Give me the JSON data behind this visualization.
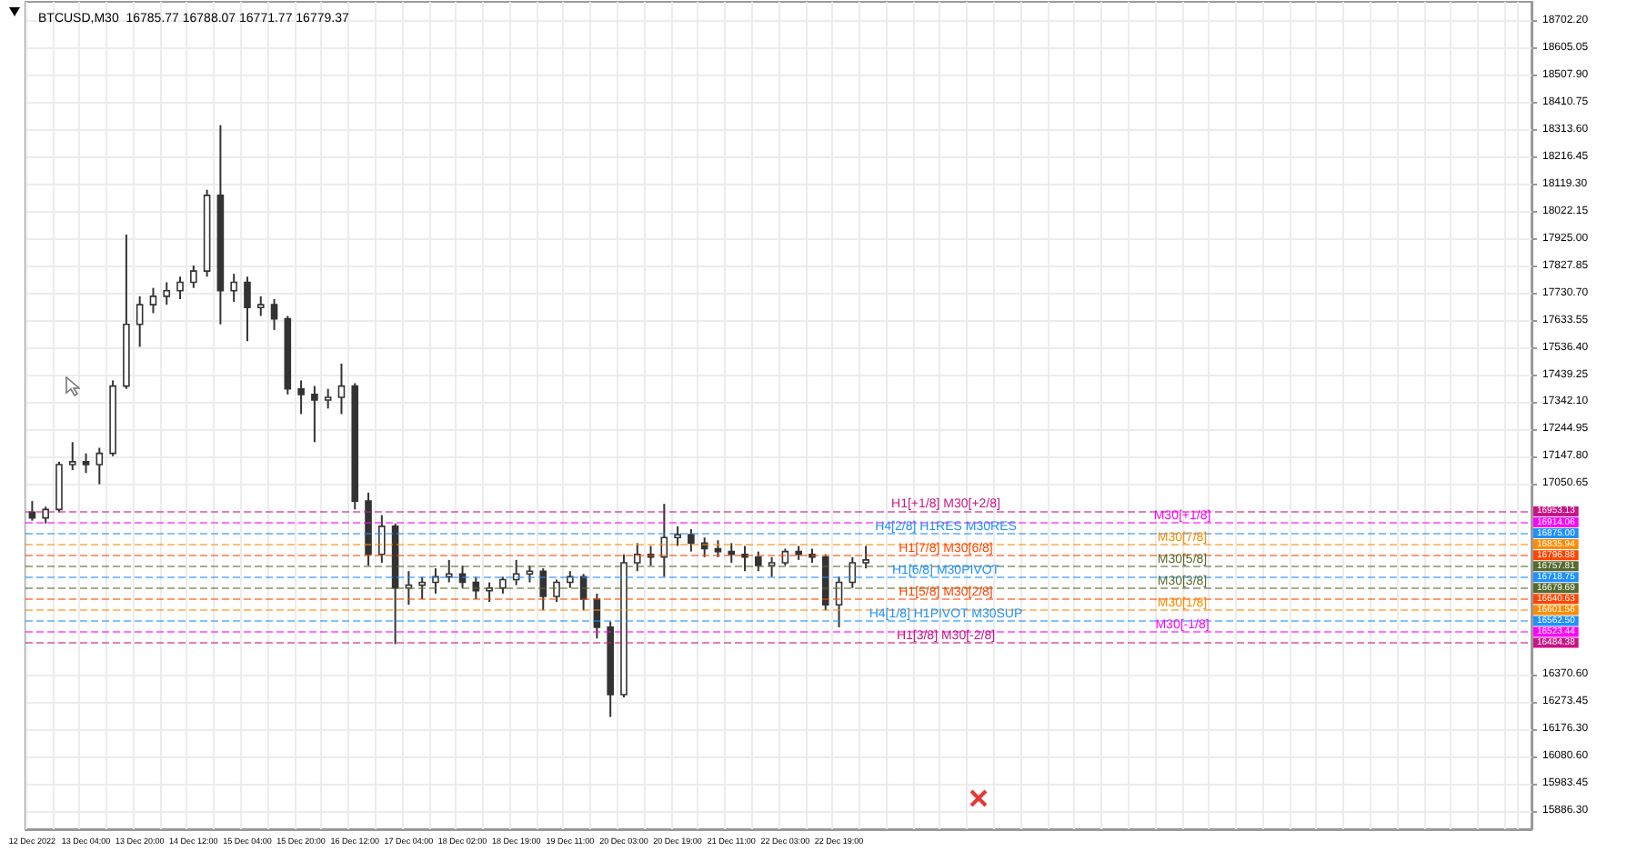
{
  "chart_data": {
    "type": "candlestick",
    "title": "BTCUSD,M30  16785.77 16788.07 16771.77 16779.37",
    "color": "#333333",
    "grid": true,
    "categories": [
      "12 Dec 2022",
      null,
      null,
      null,
      "13 Dec 04:00",
      null,
      null,
      null,
      "13 Dec 20:00",
      null,
      null,
      null,
      "14 Dec 12:00",
      null,
      null,
      null,
      "15 Dec 04:00",
      null,
      null,
      null,
      "15 Dec 20:00",
      null,
      null,
      null,
      "16 Dec 12:00",
      null,
      null,
      null,
      "17 Dec 04:00",
      null,
      null,
      null,
      "18 Dec 02:00",
      null,
      null,
      null,
      "18 Dec 19:00",
      null,
      null,
      null,
      "19 Dec 11:00",
      null,
      null,
      null,
      "20 Dec 03:00",
      null,
      null,
      null,
      "20 Dec 19:00",
      null,
      null,
      null,
      "21 Dec 11:00",
      null,
      null,
      null,
      "22 Dec 03:00",
      null,
      null,
      null,
      "22 Dec 19:00",
      null,
      null,
      null,
      null,
      null,
      null,
      null,
      null,
      null,
      null,
      null,
      null,
      null,
      null,
      null,
      null,
      null,
      null,
      null,
      null,
      null,
      null,
      null,
      null,
      null,
      null,
      null,
      null,
      null,
      null,
      null,
      null,
      null,
      null,
      null,
      null,
      null,
      null,
      null,
      null,
      null,
      null,
      null,
      null,
      null,
      null,
      null,
      null,
      null,
      null,
      null
    ],
    "ohlc": [
      [
        16950,
        16990,
        16920,
        16930
      ],
      [
        16930,
        16970,
        16910,
        16960
      ],
      [
        16960,
        17130,
        16950,
        17120
      ],
      [
        17120,
        17200,
        17100,
        17130
      ],
      [
        17130,
        17160,
        17090,
        17120
      ],
      [
        17120,
        17180,
        17050,
        17160
      ],
      [
        17160,
        17420,
        17150,
        17400
      ],
      [
        17400,
        17940,
        17390,
        17620
      ],
      [
        17620,
        17720,
        17540,
        17690
      ],
      [
        17690,
        17750,
        17660,
        17720
      ],
      [
        17720,
        17770,
        17690,
        17740
      ],
      [
        17740,
        17790,
        17710,
        17770
      ],
      [
        17770,
        17830,
        17750,
        17810
      ],
      [
        17810,
        18100,
        17790,
        18080
      ],
      [
        18080,
        18330,
        17620,
        17740
      ],
      [
        17740,
        17800,
        17700,
        17770
      ],
      [
        17770,
        17790,
        17560,
        17680
      ],
      [
        17680,
        17720,
        17650,
        17690
      ],
      [
        17690,
        17710,
        17600,
        17640
      ],
      [
        17640,
        17650,
        17370,
        17390
      ],
      [
        17390,
        17420,
        17300,
        17370
      ],
      [
        17370,
        17400,
        17200,
        17350
      ],
      [
        17350,
        17390,
        17320,
        17360
      ],
      [
        17360,
        17480,
        17300,
        17400
      ],
      [
        17400,
        17410,
        16960,
        16990
      ],
      [
        16990,
        17020,
        16760,
        16800
      ],
      [
        16800,
        16940,
        16770,
        16900
      ],
      [
        16900,
        16910,
        16480,
        16680
      ],
      [
        16680,
        16740,
        16620,
        16690
      ],
      [
        16690,
        16720,
        16640,
        16700
      ],
      [
        16700,
        16750,
        16660,
        16720
      ],
      [
        16720,
        16780,
        16700,
        16730
      ],
      [
        16730,
        16760,
        16680,
        16700
      ],
      [
        16700,
        16720,
        16640,
        16670
      ],
      [
        16670,
        16700,
        16630,
        16680
      ],
      [
        16680,
        16720,
        16660,
        16710
      ],
      [
        16710,
        16780,
        16690,
        16730
      ],
      [
        16730,
        16760,
        16700,
        16740
      ],
      [
        16740,
        16750,
        16600,
        16650
      ],
      [
        16650,
        16710,
        16630,
        16700
      ],
      [
        16700,
        16740,
        16680,
        16720
      ],
      [
        16720,
        16730,
        16600,
        16640
      ],
      [
        16640,
        16660,
        16500,
        16540
      ],
      [
        16540,
        16560,
        16220,
        16300
      ],
      [
        16300,
        16800,
        16290,
        16770
      ],
      [
        16770,
        16840,
        16740,
        16800
      ],
      [
        16800,
        16830,
        16760,
        16790
      ],
      [
        16790,
        16980,
        16720,
        16860
      ],
      [
        16860,
        16900,
        16830,
        16870
      ],
      [
        16870,
        16890,
        16810,
        16840
      ],
      [
        16840,
        16860,
        16790,
        16820
      ],
      [
        16820,
        16850,
        16790,
        16810
      ],
      [
        16810,
        16840,
        16770,
        16800
      ],
      [
        16800,
        16830,
        16740,
        16790
      ],
      [
        16790,
        16810,
        16740,
        16760
      ],
      [
        16760,
        16790,
        16720,
        16770
      ],
      [
        16770,
        16820,
        16760,
        16810
      ],
      [
        16810,
        16830,
        16780,
        16800
      ],
      [
        16800,
        16820,
        16770,
        16790
      ],
      [
        16790,
        16800,
        16600,
        16620
      ],
      [
        16620,
        16720,
        16540,
        16700
      ],
      [
        16700,
        16790,
        16680,
        16770
      ],
      [
        16770,
        16830,
        16750,
        16780
      ],
      null,
      null,
      null,
      null,
      null,
      null,
      null,
      null,
      null,
      null,
      null,
      null,
      null,
      null,
      null,
      null,
      null,
      null,
      null,
      null,
      null,
      null,
      null,
      null,
      null,
      null,
      null,
      null,
      null,
      null,
      null,
      null,
      null,
      null,
      null,
      null,
      null,
      null,
      null,
      null,
      null,
      null,
      null,
      null,
      null,
      null,
      null,
      null,
      null
    ],
    "annotations": [
      "16953.13",
      "16914.06",
      "16875.00",
      "16835.94",
      "16796.88",
      "16757.81",
      "16718.75",
      "16679.69",
      "16640.63",
      "16601.56",
      "16562.50",
      "16523.44",
      "16484.38"
    ],
    "ylim": [
      15820,
      18770
    ],
    "yticks": [
      {
        "value": 18702.2,
        "label": "18702.20"
      },
      {
        "value": 18605.05,
        "label": "18605.05"
      },
      {
        "value": 18507.9,
        "label": "18507.90"
      },
      {
        "value": 18410.75,
        "label": "18410.75"
      },
      {
        "value": 18313.6,
        "label": "18313.60"
      },
      {
        "value": 18216.45,
        "label": "18216.45"
      },
      {
        "value": 18119.3,
        "label": "18119.30"
      },
      {
        "value": 18022.15,
        "label": "18022.15"
      },
      {
        "value": 17925,
        "label": "17925.00"
      },
      {
        "value": 17827.85,
        "label": "17827.85"
      },
      {
        "value": 17730.7,
        "label": "17730.70"
      },
      {
        "value": 17633.55,
        "label": "17633.55"
      },
      {
        "value": 17536.4,
        "label": "17536.40"
      },
      {
        "value": 17439.25,
        "label": "17439.25"
      },
      {
        "value": 17342.1,
        "label": "17342.10"
      },
      {
        "value": 17244.95,
        "label": "17244.95"
      },
      {
        "value": 17147.8,
        "label": "17147.80"
      },
      {
        "value": 17050.65,
        "label": "17050.65"
      },
      {
        "value": 16370.6,
        "label": "16370.60"
      },
      {
        "value": 16273.45,
        "label": "16273.45"
      },
      {
        "value": 16176.3,
        "label": "16176.30"
      },
      {
        "value": 16080.6,
        "label": "16080.60"
      },
      {
        "value": 15983.45,
        "label": "15983.45"
      },
      {
        "value": 15886.3,
        "label": "15886.30"
      }
    ],
    "ref_lines": [
      {
        "axis": "y",
        "value": 16953.13,
        "label": "H1[+1/8] M30[+2/8]",
        "color": "#c71585",
        "line_style": "dashed"
      },
      {
        "axis": "y",
        "value": 16914.06,
        "label": "M30[+1/8]",
        "color": "#ff00ff",
        "line_style": "dashed"
      },
      {
        "axis": "y",
        "value": 16875.0,
        "label": "H4[2/8] H1RES M30RES",
        "color": "#1e90ff",
        "line_style": "dashed"
      },
      {
        "axis": "y",
        "value": 16835.94,
        "label": "M30[7/8]",
        "color": "#ff8c00",
        "line_style": "dashed"
      },
      {
        "axis": "y",
        "value": 16796.88,
        "label": "H1[7/8] M30[6/8]",
        "color": "#ff4500",
        "line_style": "dashed"
      },
      {
        "axis": "y",
        "value": 16757.81,
        "label": "M30[5/8]",
        "color": "#556b2f",
        "line_style": "dashed"
      },
      {
        "axis": "y",
        "value": 16718.75,
        "label": "H1[6/8] M30PIVOT",
        "color": "#1e90ff",
        "line_style": "dashed"
      },
      {
        "axis": "y",
        "value": 16679.69,
        "label": "M30[3/8]",
        "color": "#556b2f",
        "line_style": "dashed"
      },
      {
        "axis": "y",
        "value": 16640.63,
        "label": "H1[5/8] M30[2/8]",
        "color": "#ff4500",
        "line_style": "dashed"
      },
      {
        "axis": "y",
        "value": 16601.56,
        "label": "M30[1/8]",
        "color": "#ff8c00",
        "line_style": "dashed"
      },
      {
        "axis": "y",
        "value": 16562.5,
        "label": "H4[1/8] H1PIVOT M30SUP",
        "color": "#1e90ff",
        "line_style": "dashed"
      },
      {
        "axis": "y",
        "value": 16523.44,
        "label": "M30[-1/8]",
        "color": "#ff00ff",
        "line_style": "dashed"
      },
      {
        "axis": "y",
        "value": 16484.38,
        "label": "H1[3/8] M30[-2/8]",
        "color": "#c71585",
        "line_style": "dashed"
      }
    ]
  }
}
